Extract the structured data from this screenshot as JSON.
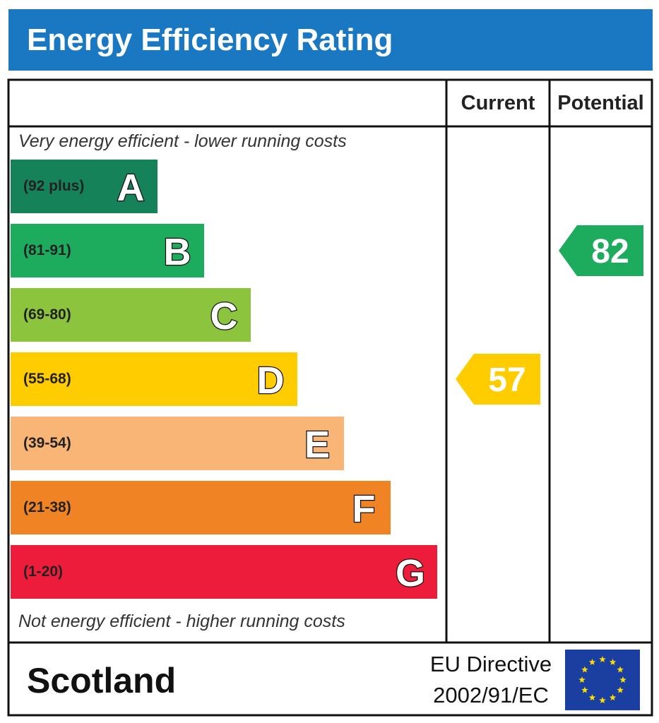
{
  "title": "Energy Efficiency Rating",
  "columns": {
    "current": "Current",
    "potential": "Potential"
  },
  "top_note": "Very energy efficient - lower running costs",
  "bottom_note": "Not energy efficient - higher running costs",
  "chart_data": {
    "type": "bar",
    "categories": [
      "A",
      "B",
      "C",
      "D",
      "E",
      "F",
      "G"
    ],
    "bands": [
      {
        "letter": "A",
        "range": "(92 plus)",
        "color": "#16825a",
        "letter_color": "#ffffff",
        "min": 92,
        "max": 100
      },
      {
        "letter": "B",
        "range": "(81-91)",
        "color": "#1dab5e",
        "letter_color": "#ffffff",
        "min": 81,
        "max": 91
      },
      {
        "letter": "C",
        "range": "(69-80)",
        "color": "#8cc43e",
        "letter_color": "#ffffff",
        "min": 69,
        "max": 80
      },
      {
        "letter": "D",
        "range": "(55-68)",
        "color": "#ffcc00",
        "letter_color": "#ffffff",
        "min": 55,
        "max": 68
      },
      {
        "letter": "E",
        "range": "(39-54)",
        "color": "#f8b576",
        "letter_color": "#ffffff",
        "min": 39,
        "max": 54
      },
      {
        "letter": "F",
        "range": "(21-38)",
        "color": "#f08323",
        "letter_color": "#ffffff",
        "min": 21,
        "max": 38
      },
      {
        "letter": "G",
        "range": "(1-20)",
        "color": "#ec1c3a",
        "letter_color": "#ffffff",
        "min": 1,
        "max": 20
      }
    ],
    "current": {
      "value": 57,
      "band": "D",
      "color": "#ffcc00"
    },
    "potential": {
      "value": 82,
      "band": "B",
      "color": "#1dab5e"
    }
  },
  "footer": {
    "region": "Scotland",
    "directive_line1": "EU Directive",
    "directive_line2": "2002/91/EC",
    "flag_color": "#1a3fa0",
    "star_color": "#ffdd00"
  }
}
